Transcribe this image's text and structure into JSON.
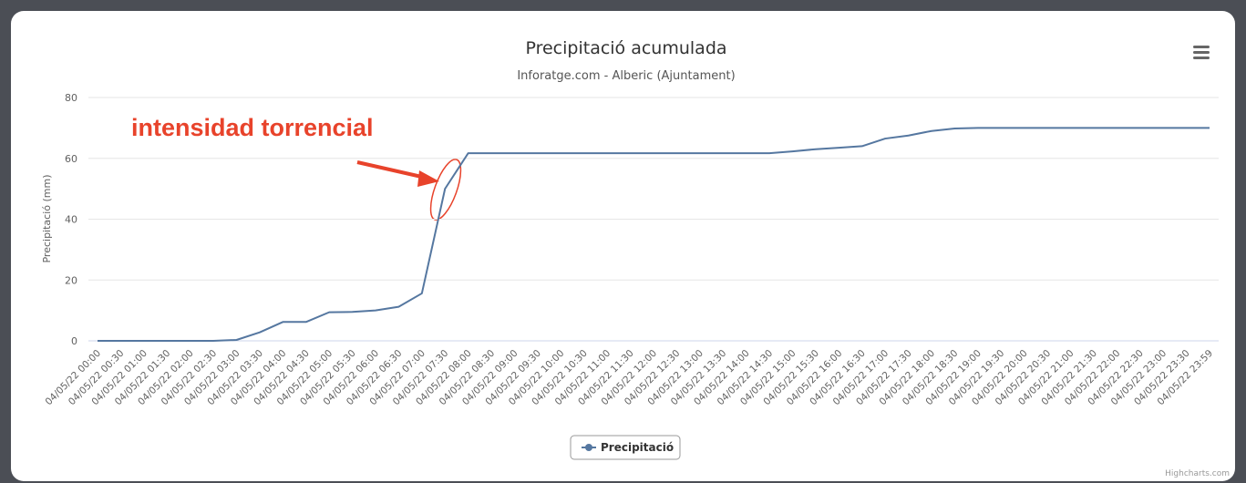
{
  "chart_data": {
    "type": "line",
    "title": "Precipitació acumulada",
    "subtitle": "Inforatge.com - Alberic (Ajuntament)",
    "y_label": "Precipitació (mm)",
    "annotation": "intensidad torrencial",
    "credits": "Highcharts.com",
    "categories": [
      "04/05/22 00:00",
      "04/05/22 00:30",
      "04/05/22 01:00",
      "04/05/22 01:30",
      "04/05/22 02:00",
      "04/05/22 02:30",
      "04/05/22 03:00",
      "04/05/22 03:30",
      "04/05/22 04:00",
      "04/05/22 04:30",
      "04/05/22 05:00",
      "04/05/22 05:30",
      "04/05/22 06:00",
      "04/05/22 06:30",
      "04/05/22 07:00",
      "04/05/22 07:30",
      "04/05/22 08:00",
      "04/05/22 08:30",
      "04/05/22 09:00",
      "04/05/22 09:30",
      "04/05/22 10:00",
      "04/05/22 10:30",
      "04/05/22 11:00",
      "04/05/22 11:30",
      "04/05/22 12:00",
      "04/05/22 12:30",
      "04/05/22 13:00",
      "04/05/22 13:30",
      "04/05/22 14:00",
      "04/05/22 14:30",
      "04/05/22 15:00",
      "04/05/22 15:30",
      "04/05/22 16:00",
      "04/05/22 16:30",
      "04/05/22 17:00",
      "04/05/22 17:30",
      "04/05/22 18:00",
      "04/05/22 18:30",
      "04/05/22 19:00",
      "04/05/22 19:30",
      "04/05/22 20:00",
      "04/05/22 20:30",
      "04/05/22 21:00",
      "04/05/22 21:30",
      "04/05/22 22:00",
      "04/05/22 22:30",
      "04/05/22 23:00",
      "04/05/22 23:30",
      "04/05/22 23:59"
    ],
    "series": [
      {
        "name": "Precipitació",
        "color": "#5577a0",
        "values": [
          0,
          0,
          0,
          0,
          0,
          0,
          0.3,
          2.8,
          6.2,
          6.2,
          9.4,
          9.5,
          10,
          11.2,
          15.6,
          50,
          61.7,
          61.7,
          61.7,
          61.7,
          61.7,
          61.7,
          61.7,
          61.7,
          61.7,
          61.7,
          61.7,
          61.7,
          61.7,
          61.7,
          62.3,
          63,
          63.5,
          64,
          66.5,
          67.5,
          69,
          69.8,
          70,
          70,
          70,
          70,
          70,
          70,
          70,
          70,
          70,
          70,
          70
        ]
      }
    ],
    "ylim": [
      0,
      80
    ],
    "yticks": [
      0,
      20,
      40,
      60,
      80
    ],
    "grid": true,
    "legend": "bottom"
  }
}
